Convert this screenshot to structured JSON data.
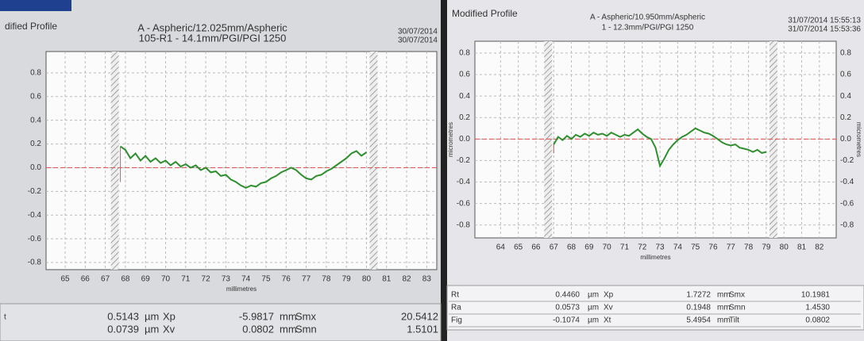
{
  "chart_data": [
    {
      "type": "line",
      "title": "dified Profile",
      "header": [
        "A - Aspheric/12.025mm/Aspheric",
        "105-R1 - 14.1mm/PGI/PGI 1250"
      ],
      "dates": [
        "30/07/2014",
        "30/07/2014"
      ],
      "x_label": "millimetres",
      "x": [
        67.75,
        68,
        68.25,
        68.5,
        68.75,
        69,
        69.25,
        69.5,
        69.75,
        70,
        70.25,
        70.5,
        70.75,
        71,
        71.25,
        71.5,
        71.75,
        72,
        72.25,
        72.5,
        72.75,
        73,
        73.25,
        73.5,
        73.75,
        74,
        74.25,
        74.5,
        74.75,
        75,
        75.25,
        75.5,
        75.75,
        76,
        76.25,
        76.5,
        76.75,
        77,
        77.25,
        77.5,
        77.75,
        78,
        78.25,
        78.5,
        78.75,
        79,
        79.25,
        79.5,
        79.75,
        80
      ],
      "values": [
        0.18,
        0.15,
        0.08,
        0.12,
        0.06,
        0.1,
        0.05,
        0.08,
        0.04,
        0.06,
        0.02,
        0.05,
        0.01,
        0.03,
        0,
        0.02,
        -0.02,
        0,
        -0.04,
        -0.03,
        -0.07,
        -0.06,
        -0.1,
        -0.12,
        -0.15,
        -0.17,
        -0.15,
        -0.16,
        -0.13,
        -0.12,
        -0.09,
        -0.07,
        -0.04,
        -0.02,
        0,
        -0.02,
        -0.06,
        -0.09,
        -0.1,
        -0.07,
        -0.06,
        -0.03,
        -0.01,
        0.02,
        0.05,
        0.08,
        0.12,
        0.14,
        0.1,
        0.13
      ],
      "color": "#2f8f2f",
      "xlim": [
        64.05,
        83.5
      ],
      "ylim": [
        -0.86,
        0.98
      ],
      "xticks": [
        65,
        66,
        67,
        68,
        69,
        70,
        71,
        72,
        73,
        74,
        75,
        76,
        77,
        78,
        79,
        80,
        81,
        82,
        83
      ],
      "yticks": [
        0.8,
        0.6,
        0.4,
        0.2,
        {
          "value": 0,
          "label": "0.0"
        },
        -0.2,
        -0.4,
        -0.6,
        -0.8
      ],
      "grid": true,
      "stats": [
        {
          "label": "t",
          "cells": [
            "0.5143",
            "µm",
            "Xp",
            "-5.9817",
            "mm",
            "Smx",
            "20.5412"
          ]
        },
        {
          "cells": [
            "0.0739",
            "µm",
            "Xv",
            "0.0802",
            "mm",
            "Smn",
            "1.5101"
          ]
        }
      ]
    },
    {
      "type": "line",
      "title": "Modified Profile",
      "header": [
        "A - Aspheric/10.950mm/Aspheric",
        "1 - 12.3mm/PGI/PGI 1250"
      ],
      "dates": [
        "31/07/2014 15:55:13",
        "31/07/2014 15:53:36"
      ],
      "x_label": "millimetres",
      "y_label": "micrometres",
      "x": [
        67,
        67.25,
        67.5,
        67.75,
        68,
        68.25,
        68.5,
        68.75,
        69,
        69.25,
        69.5,
        69.75,
        70,
        70.25,
        70.5,
        70.75,
        71,
        71.25,
        71.5,
        71.75,
        72,
        72.25,
        72.5,
        72.75,
        73,
        73.25,
        73.5,
        73.75,
        74,
        74.25,
        74.5,
        74.75,
        75,
        75.25,
        75.5,
        75.75,
        76,
        76.25,
        76.5,
        76.75,
        77,
        77.25,
        77.5,
        77.75,
        78,
        78.25,
        78.5,
        78.75,
        79
      ],
      "values": [
        -0.05,
        0.02,
        -0.01,
        0.03,
        0,
        0.04,
        0.02,
        0.05,
        0.03,
        0.06,
        0.04,
        0.05,
        0.03,
        0.06,
        0.04,
        0.02,
        0.04,
        0.03,
        0.06,
        0.09,
        0.05,
        0.02,
        0,
        -0.08,
        -0.25,
        -0.18,
        -0.1,
        -0.05,
        -0.01,
        0.02,
        0.04,
        0.07,
        0.1,
        0.08,
        0.06,
        0.05,
        0.03,
        0,
        -0.03,
        -0.05,
        -0.06,
        -0.05,
        -0.08,
        -0.09,
        -0.1,
        -0.12,
        -0.1,
        -0.13,
        -0.12
      ],
      "color": "#2f8f2f",
      "xlim": [
        62.55,
        82.95
      ],
      "ylim": [
        -0.92,
        0.91
      ],
      "xticks": [
        64,
        65,
        66,
        67,
        68,
        69,
        70,
        71,
        72,
        73,
        74,
        75,
        76,
        77,
        78,
        79,
        80,
        81,
        82
      ],
      "yticks": [
        0.8,
        0.6,
        0.4,
        0.2,
        {
          "value": 0,
          "label": "0.0"
        },
        -0.2,
        -0.4,
        -0.6,
        -0.8
      ],
      "grid": true,
      "stats": [
        {
          "label": "Rt",
          "cells": [
            "0.4460",
            "µm",
            "Xp",
            "1.7272",
            "mm",
            "Smx",
            "10.1981"
          ]
        },
        {
          "label": "Ra",
          "cells": [
            "0.0573",
            "µm",
            "Xv",
            "0.1948",
            "mm",
            "Smn",
            "1.4530"
          ]
        },
        {
          "label": "Fig",
          "cells": [
            "-0.1074",
            "µm",
            "Xt",
            "5.4954",
            "mm",
            "Tilt",
            "0.0802"
          ]
        }
      ]
    }
  ]
}
